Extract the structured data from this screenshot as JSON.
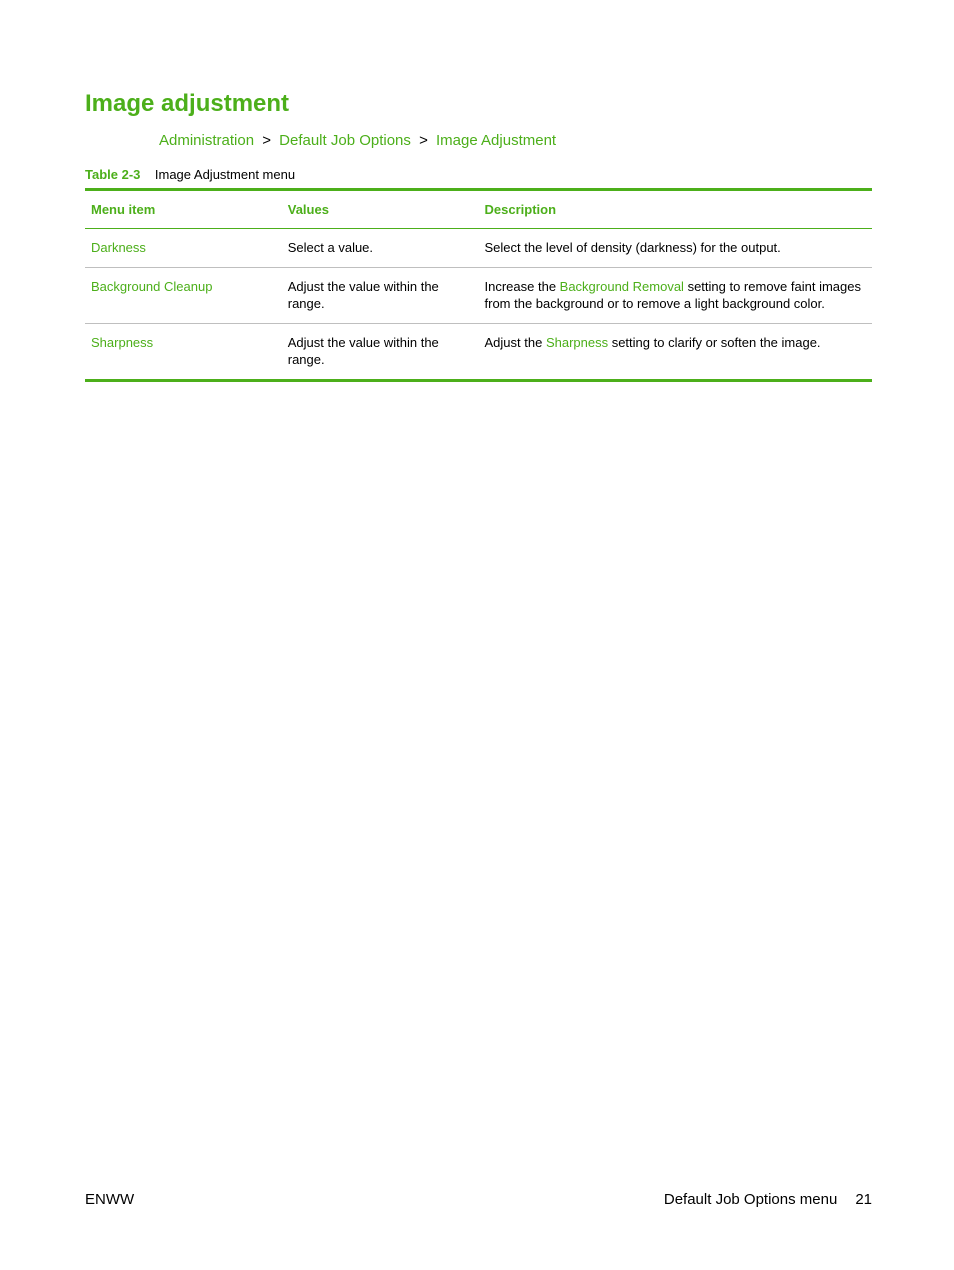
{
  "colors": {
    "accent": "#4caf1a",
    "table_border": "#4caf1a",
    "row_divider": "#bfbfbf",
    "text": "#000000"
  },
  "heading": "Image adjustment",
  "breadcrumb": {
    "items": [
      "Administration",
      "Default Job Options",
      "Image Adjustment"
    ],
    "separator": ">"
  },
  "table_caption": {
    "label": "Table 2-3",
    "text": "Image Adjustment menu"
  },
  "table": {
    "columns": [
      "Menu item",
      "Values",
      "Description"
    ],
    "col_widths_pct": [
      25,
      25,
      50
    ],
    "rows": [
      {
        "menu_item": "Darkness",
        "values": "Select a value.",
        "description_parts": [
          {
            "text": "Select the level of density (darkness) for the output.",
            "link": false
          }
        ]
      },
      {
        "menu_item": "Background Cleanup",
        "values": "Adjust the value within the range.",
        "description_parts": [
          {
            "text": "Increase the ",
            "link": false
          },
          {
            "text": "Background Removal",
            "link": true
          },
          {
            "text": " setting to remove faint images from the background or to remove a light background color.",
            "link": false
          }
        ]
      },
      {
        "menu_item": "Sharpness",
        "values": "Adjust the value within the range.",
        "description_parts": [
          {
            "text": "Adjust the ",
            "link": false
          },
          {
            "text": "Sharpness",
            "link": true
          },
          {
            "text": " setting to clarify or soften the image.",
            "link": false
          }
        ]
      }
    ]
  },
  "footer": {
    "left": "ENWW",
    "right_text": "Default Job Options menu",
    "page_number": "21"
  }
}
